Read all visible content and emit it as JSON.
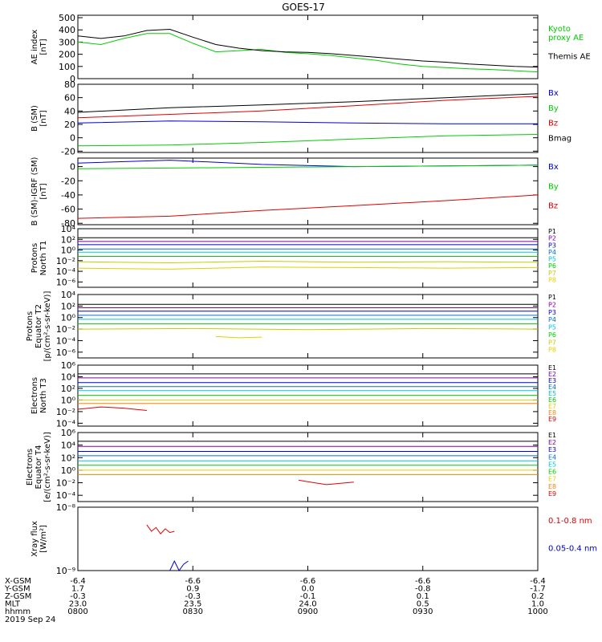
{
  "title": "GOES-17",
  "colors": {
    "black": "#000000",
    "red": "#e00000",
    "green": "#00cc00",
    "blue": "#0000d0",
    "cyan": "#00c0e0",
    "orange": "#ff8000",
    "yellow": "#e0d000",
    "purple": "#8000a0"
  },
  "chart_data": [
    {
      "type": "line",
      "name": "ae",
      "ylabel": "AE index\n[nT]",
      "ylim": [
        0,
        520
      ],
      "yscale": "linear",
      "ticks": [
        {
          "v": 0,
          "t": "0"
        },
        {
          "v": 100,
          "t": "100"
        },
        {
          "v": 200,
          "t": "200"
        },
        {
          "v": 300,
          "t": "300"
        },
        {
          "v": 400,
          "t": "400"
        },
        {
          "v": 500,
          "t": "500"
        }
      ],
      "series": [
        {
          "name": "Kyoto\nproxy AE",
          "color": "#00cc00",
          "x": [
            0,
            0.05,
            0.1,
            0.15,
            0.2,
            0.25,
            0.3,
            0.35,
            0.4,
            0.45,
            0.5,
            0.55,
            0.6,
            0.65,
            0.7,
            0.75,
            0.8,
            0.85,
            0.9,
            0.95,
            1
          ],
          "values": [
            300,
            280,
            330,
            370,
            370,
            290,
            220,
            230,
            240,
            215,
            205,
            190,
            170,
            150,
            120,
            100,
            90,
            80,
            75,
            65,
            55
          ]
        },
        {
          "name": "Themis AE",
          "color": "#000000",
          "x": [
            0,
            0.05,
            0.1,
            0.15,
            0.2,
            0.25,
            0.3,
            0.35,
            0.4,
            0.45,
            0.5,
            0.55,
            0.6,
            0.65,
            0.7,
            0.75,
            0.8,
            0.85,
            0.9,
            0.95,
            1
          ],
          "values": [
            350,
            330,
            350,
            395,
            405,
            340,
            280,
            250,
            230,
            220,
            215,
            205,
            190,
            175,
            160,
            145,
            135,
            120,
            110,
            100,
            95
          ]
        }
      ]
    },
    {
      "type": "line",
      "name": "bsm",
      "ylabel": "B (SM)\n[nT]",
      "ylim": [
        -22,
        80
      ],
      "yscale": "linear",
      "ticks": [
        {
          "v": -20,
          "t": "-20"
        },
        {
          "v": 0,
          "t": "0"
        },
        {
          "v": 20,
          "t": "20"
        },
        {
          "v": 40,
          "t": "40"
        },
        {
          "v": 60,
          "t": "60"
        },
        {
          "v": 80,
          "t": "80"
        }
      ],
      "series": [
        {
          "name": "Bx",
          "color": "#0000d0",
          "x": [
            0,
            0.2,
            0.4,
            0.6,
            0.8,
            1
          ],
          "values": [
            22,
            25,
            24,
            22,
            21,
            21
          ]
        },
        {
          "name": "By",
          "color": "#00cc00",
          "x": [
            0,
            0.2,
            0.4,
            0.6,
            0.8,
            1
          ],
          "values": [
            -12,
            -11,
            -7,
            -2,
            3,
            5
          ]
        },
        {
          "name": "Bz",
          "color": "#e00000",
          "x": [
            0,
            0.2,
            0.4,
            0.6,
            0.8,
            1
          ],
          "values": [
            30,
            35,
            40,
            48,
            56,
            62
          ]
        },
        {
          "name": "Bmag",
          "color": "#000000",
          "x": [
            0,
            0.2,
            0.4,
            0.6,
            0.8,
            1
          ],
          "values": [
            38,
            45,
            49,
            54,
            60,
            66
          ]
        }
      ]
    },
    {
      "type": "line",
      "name": "bigrf",
      "ylabel": "B (SM)-IGRF (SM)\n[nT]",
      "ylim": [
        -82,
        12
      ],
      "yscale": "linear",
      "ticks": [
        {
          "v": -80,
          "t": "-80"
        },
        {
          "v": -60,
          "t": "-60"
        },
        {
          "v": -40,
          "t": "-40"
        },
        {
          "v": -20,
          "t": "-20"
        },
        {
          "v": 0,
          "t": "0"
        }
      ],
      "series": [
        {
          "name": "Bx",
          "color": "#0000d0",
          "x": [
            0,
            0.2,
            0.4,
            0.6,
            0.8,
            1
          ],
          "values": [
            5,
            9,
            3,
            0,
            1,
            2
          ]
        },
        {
          "name": "By",
          "color": "#00cc00",
          "x": [
            0,
            0.2,
            0.4,
            0.6,
            0.8,
            1
          ],
          "values": [
            -3,
            -2,
            -1,
            0,
            1,
            2
          ]
        },
        {
          "name": "Bz",
          "color": "#e00000",
          "x": [
            0,
            0.2,
            0.4,
            0.6,
            0.8,
            1
          ],
          "values": [
            -73,
            -70,
            -62,
            -55,
            -48,
            -40
          ]
        }
      ]
    },
    {
      "type": "line",
      "name": "p-north",
      "ylabel": "Protons\nNorth T1",
      "ylim": [
        -7,
        4
      ],
      "yscale": "log10",
      "ticks": [
        {
          "v": -6,
          "t": "10⁻⁶"
        },
        {
          "v": -4,
          "t": "10⁻⁴"
        },
        {
          "v": -2,
          "t": "10⁻²"
        },
        {
          "v": 0,
          "t": "10⁰"
        },
        {
          "v": 2,
          "t": "10²"
        },
        {
          "v": 4,
          "t": "10⁴"
        }
      ],
      "series": [
        {
          "name": "P1",
          "color": "#000000",
          "x": [
            0,
            1
          ],
          "values": [
            2.3,
            2.3
          ]
        },
        {
          "name": "P2",
          "color": "#8000a0",
          "x": [
            0,
            1
          ],
          "values": [
            1.6,
            1.6
          ]
        },
        {
          "name": "P3",
          "color": "#0000d0",
          "x": [
            0,
            1
          ],
          "values": [
            1.0,
            1.0
          ]
        },
        {
          "name": "P4",
          "color": "#0070d0",
          "x": [
            0,
            1
          ],
          "values": [
            0.2,
            0.2
          ]
        },
        {
          "name": "P5",
          "color": "#00c0e0",
          "x": [
            0,
            1
          ],
          "values": [
            -0.4,
            -0.4
          ]
        },
        {
          "name": "P6",
          "color": "#00cc00",
          "x": [
            0,
            1
          ],
          "values": [
            -1.2,
            -1.2
          ]
        },
        {
          "name": "P7",
          "color": "#c0d000",
          "x": [
            0,
            0.2,
            0.4,
            0.6,
            0.8,
            1
          ],
          "values": [
            -2.2,
            -2.4,
            -2.1,
            -2.3,
            -2.2,
            -2.3
          ]
        },
        {
          "name": "P8",
          "color": "#e0d000",
          "x": [
            0,
            0.2,
            0.4,
            0.6,
            0.8,
            1
          ],
          "values": [
            -3.4,
            -3.6,
            -3.2,
            -3.3,
            -3.4,
            -3.3
          ]
        }
      ]
    },
    {
      "type": "line",
      "name": "p-equator",
      "ylabel": "Protons\nEquator T2\n[p/(cm²-s-sr-keV)]",
      "ylim": [
        -7,
        4
      ],
      "yscale": "log10",
      "ticks": [
        {
          "v": -6,
          "t": "10⁻⁶"
        },
        {
          "v": -4,
          "t": "10⁻⁴"
        },
        {
          "v": -2,
          "t": "10⁻²"
        },
        {
          "v": 0,
          "t": "10⁰"
        },
        {
          "v": 2,
          "t": "10²"
        },
        {
          "v": 4,
          "t": "10⁴"
        }
      ],
      "series": [
        {
          "name": "P1",
          "color": "#000000",
          "x": [
            0,
            1
          ],
          "values": [
            2.3,
            2.3
          ]
        },
        {
          "name": "P2",
          "color": "#8000a0",
          "x": [
            0,
            1
          ],
          "values": [
            1.7,
            1.7
          ]
        },
        {
          "name": "P3",
          "color": "#0000d0",
          "x": [
            0,
            1
          ],
          "values": [
            1.1,
            1.1
          ]
        },
        {
          "name": "P4",
          "color": "#0070d0",
          "x": [
            0,
            1
          ],
          "values": [
            0.4,
            0.4
          ]
        },
        {
          "name": "P5",
          "color": "#00c0e0",
          "x": [
            0,
            1
          ],
          "values": [
            -0.3,
            -0.3
          ]
        },
        {
          "name": "P6",
          "color": "#00cc00",
          "x": [
            0,
            1
          ],
          "values": [
            -1.1,
            -1.1
          ]
        },
        {
          "name": "P7",
          "color": "#c0d000",
          "x": [
            0,
            0.25,
            0.5,
            0.75,
            1
          ],
          "values": [
            -2.0,
            -1.9,
            -2.1,
            -1.9,
            -2.0
          ]
        },
        {
          "name": "P8",
          "color": "#e0d000",
          "x": [
            0.3,
            0.35,
            0.4
          ],
          "values": [
            -3.3,
            -3.5,
            -3.4
          ]
        }
      ]
    },
    {
      "type": "line",
      "name": "e-north",
      "ylabel": "Electrons\nNorth T3",
      "ylim": [
        -4.5,
        6
      ],
      "yscale": "log10",
      "ticks": [
        {
          "v": -4,
          "t": "10⁻⁴"
        },
        {
          "v": -2,
          "t": "10⁻²"
        },
        {
          "v": 0,
          "t": "10⁰"
        },
        {
          "v": 2,
          "t": "10²"
        },
        {
          "v": 4,
          "t": "10⁴"
        },
        {
          "v": 6,
          "t": "10⁶"
        }
      ],
      "series": [
        {
          "name": "E1",
          "color": "#000000",
          "x": [
            0,
            1
          ],
          "values": [
            4.5,
            4.5
          ]
        },
        {
          "name": "E2",
          "color": "#8000a0",
          "x": [
            0,
            1
          ],
          "values": [
            3.8,
            3.8
          ]
        },
        {
          "name": "E3",
          "color": "#0000d0",
          "x": [
            0,
            1
          ],
          "values": [
            3.0,
            3.0
          ]
        },
        {
          "name": "E4",
          "color": "#0070d0",
          "x": [
            0,
            1
          ],
          "values": [
            2.3,
            2.3
          ]
        },
        {
          "name": "E5",
          "color": "#00c0e0",
          "x": [
            0,
            1
          ],
          "values": [
            1.6,
            1.6
          ]
        },
        {
          "name": "E6",
          "color": "#00cc00",
          "x": [
            0,
            1
          ],
          "values": [
            0.8,
            0.8
          ]
        },
        {
          "name": "E7",
          "color": "#e0d000",
          "x": [
            0,
            1
          ],
          "values": [
            0.0,
            0.0
          ]
        },
        {
          "name": "E8",
          "color": "#ff8000",
          "x": [
            0,
            1
          ],
          "values": [
            -0.6,
            -0.6
          ]
        },
        {
          "name": "E9",
          "color": "#e00000",
          "x": [
            0,
            0.05,
            0.1,
            0.15
          ],
          "values": [
            -1.6,
            -1.2,
            -1.4,
            -1.8
          ]
        }
      ]
    },
    {
      "type": "line",
      "name": "e-equator",
      "ylabel": "Electrons\nEquator T4\n[e/(cm²-s-sr-keV)]",
      "ylim": [
        -5,
        6
      ],
      "yscale": "log10",
      "ticks": [
        {
          "v": -4,
          "t": "10⁻⁴"
        },
        {
          "v": -2,
          "t": "10⁻²"
        },
        {
          "v": 0,
          "t": "10⁰"
        },
        {
          "v": 2,
          "t": "10²"
        },
        {
          "v": 4,
          "t": "10⁴"
        },
        {
          "v": 6,
          "t": "10⁶"
        }
      ],
      "series": [
        {
          "name": "E1",
          "color": "#000000",
          "x": [
            0,
            1
          ],
          "values": [
            4.6,
            4.6
          ]
        },
        {
          "name": "E2",
          "color": "#8000a0",
          "x": [
            0,
            1
          ],
          "values": [
            3.8,
            3.8
          ]
        },
        {
          "name": "E3",
          "color": "#0000d0",
          "x": [
            0,
            1
          ],
          "values": [
            3.0,
            3.0
          ]
        },
        {
          "name": "E4",
          "color": "#0070d0",
          "x": [
            0,
            1
          ],
          "values": [
            2.3,
            2.3
          ]
        },
        {
          "name": "E5",
          "color": "#00c0e0",
          "x": [
            0,
            1
          ],
          "values": [
            1.5,
            1.5
          ]
        },
        {
          "name": "E6",
          "color": "#00cc00",
          "x": [
            0,
            1
          ],
          "values": [
            0.8,
            0.8
          ]
        },
        {
          "name": "E7",
          "color": "#e0d000",
          "x": [
            0,
            1
          ],
          "values": [
            0.0,
            0.0
          ]
        },
        {
          "name": "E8",
          "color": "#ff8000",
          "x": [
            0,
            1
          ],
          "values": [
            -0.7,
            -0.7
          ]
        },
        {
          "name": "E9",
          "color": "#e00000",
          "x": [
            0.48,
            0.54,
            0.6
          ],
          "values": [
            -1.6,
            -2.3,
            -1.9
          ]
        }
      ]
    },
    {
      "type": "line",
      "name": "xray",
      "ylabel": "Xray flux\n[W/m²]",
      "ylim": [
        -9,
        -8
      ],
      "yscale": "log10",
      "ticks": [
        {
          "v": -9,
          "t": "10⁻⁹"
        },
        {
          "v": -8,
          "t": "10⁻⁸"
        }
      ],
      "series": [
        {
          "name": "0.1-0.8 nm",
          "color": "#e00000",
          "x": [
            0.15,
            0.16,
            0.17,
            0.18,
            0.19,
            0.2,
            0.21
          ],
          "values": [
            -8.28,
            -8.38,
            -8.32,
            -8.42,
            -8.34,
            -8.4,
            -8.38
          ]
        },
        {
          "name": "0.05-0.4 nm",
          "color": "#0000d0",
          "x": [
            0.2,
            0.21,
            0.22,
            0.23,
            0.24
          ],
          "values": [
            -9,
            -8.85,
            -9,
            -8.9,
            -8.85
          ]
        }
      ]
    }
  ],
  "xaxis": {
    "row_labels": [
      "X-GSM",
      "Y-GSM",
      "Z-GSM",
      "MLT",
      "hhmm"
    ],
    "columns": [
      {
        "x": 0,
        "vals": [
          "-6.4",
          "1.7",
          "-0.3",
          "23.0",
          "0800"
        ]
      },
      {
        "x": 0.25,
        "vals": [
          "-6.6",
          "0.9",
          "-0.3",
          "23.5",
          "0830"
        ]
      },
      {
        "x": 0.5,
        "vals": [
          "-6.6",
          "0.0",
          "-0.1",
          "24.0",
          "0900"
        ]
      },
      {
        "x": 0.75,
        "vals": [
          "-6.6",
          "-0.8",
          "0.1",
          "0.5",
          "0930"
        ]
      },
      {
        "x": 1,
        "vals": [
          "-6.4",
          "-1.7",
          "0.2",
          "1.0",
          "1000"
        ]
      }
    ],
    "date": "2019 Sep 24"
  }
}
